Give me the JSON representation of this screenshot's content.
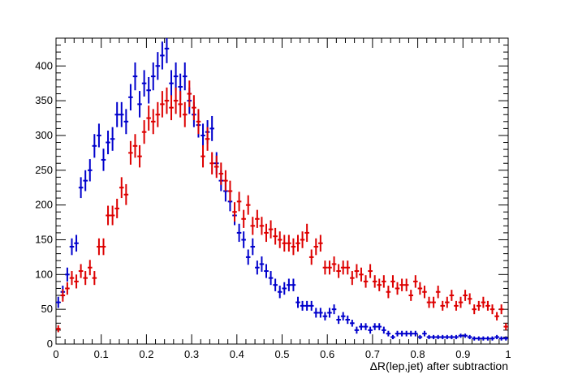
{
  "chart_data": {
    "type": "scatter",
    "title": "",
    "xlabel": "ΔR(lep,jet) after subtraction",
    "ylabel": "",
    "xlim": [
      0,
      1
    ],
    "ylim": [
      0,
      440
    ],
    "grid": false,
    "legend": "none",
    "x_ticks": [
      "0",
      "0.1",
      "0.2",
      "0.3",
      "0.4",
      "0.5",
      "0.6",
      "0.7",
      "0.8",
      "0.9",
      "1"
    ],
    "y_ticks": [
      "0",
      "50",
      "100",
      "150",
      "200",
      "250",
      "300",
      "350",
      "400"
    ],
    "bin_width": 0.01,
    "series": [
      {
        "color": "#0000cc",
        "x": [
          0.005,
          0.015,
          0.025,
          0.035,
          0.045,
          0.055,
          0.065,
          0.075,
          0.085,
          0.095,
          0.105,
          0.115,
          0.125,
          0.135,
          0.145,
          0.155,
          0.165,
          0.175,
          0.185,
          0.195,
          0.205,
          0.215,
          0.225,
          0.235,
          0.245,
          0.255,
          0.265,
          0.275,
          0.285,
          0.295,
          0.305,
          0.315,
          0.325,
          0.335,
          0.345,
          0.355,
          0.365,
          0.375,
          0.385,
          0.395,
          0.405,
          0.415,
          0.425,
          0.435,
          0.445,
          0.455,
          0.465,
          0.475,
          0.485,
          0.495,
          0.505,
          0.515,
          0.525,
          0.535,
          0.545,
          0.555,
          0.565,
          0.575,
          0.585,
          0.595,
          0.605,
          0.615,
          0.625,
          0.635,
          0.645,
          0.655,
          0.665,
          0.675,
          0.685,
          0.695,
          0.705,
          0.715,
          0.725,
          0.735,
          0.745,
          0.755,
          0.765,
          0.775,
          0.785,
          0.795,
          0.805,
          0.815,
          0.825,
          0.835,
          0.845,
          0.855,
          0.865,
          0.875,
          0.885,
          0.895,
          0.905,
          0.915,
          0.925,
          0.935,
          0.945,
          0.955,
          0.965,
          0.975,
          0.985,
          0.995
        ],
        "y": [
          60,
          75,
          100,
          140,
          145,
          225,
          235,
          250,
          285,
          300,
          265,
          290,
          295,
          330,
          330,
          320,
          355,
          385,
          345,
          375,
          365,
          385,
          400,
          415,
          425,
          375,
          385,
          370,
          385,
          350,
          330,
          315,
          300,
          305,
          310,
          260,
          235,
          220,
          205,
          185,
          160,
          150,
          125,
          140,
          110,
          115,
          105,
          95,
          85,
          75,
          80,
          85,
          85,
          60,
          55,
          55,
          55,
          45,
          45,
          40,
          45,
          50,
          35,
          40,
          35,
          30,
          20,
          25,
          25,
          20,
          25,
          25,
          20,
          15,
          10,
          15,
          15,
          15,
          15,
          15,
          10,
          15,
          10,
          10,
          10,
          10,
          10,
          10,
          10,
          12,
          12,
          10,
          8,
          8,
          8,
          8,
          8,
          10,
          8,
          8
        ],
        "err": [
          8,
          9,
          10,
          12,
          12,
          15,
          15,
          16,
          17,
          17,
          16,
          17,
          17,
          18,
          18,
          18,
          19,
          20,
          19,
          19,
          19,
          20,
          20,
          20,
          21,
          19,
          20,
          19,
          20,
          19,
          18,
          18,
          17,
          17,
          18,
          16,
          15,
          15,
          14,
          14,
          13,
          12,
          11,
          12,
          10,
          11,
          10,
          10,
          9,
          9,
          9,
          9,
          9,
          8,
          7,
          7,
          7,
          7,
          7,
          6,
          7,
          7,
          6,
          6,
          6,
          5,
          5,
          5,
          5,
          5,
          5,
          5,
          5,
          4,
          3,
          4,
          4,
          4,
          4,
          4,
          3,
          4,
          3,
          3,
          3,
          3,
          3,
          3,
          3,
          3,
          3,
          3,
          3,
          3,
          3,
          3,
          3,
          3,
          3,
          3
        ]
      },
      {
        "color": "#dd0000",
        "x": [
          0.005,
          0.015,
          0.025,
          0.035,
          0.045,
          0.055,
          0.065,
          0.075,
          0.085,
          0.095,
          0.105,
          0.115,
          0.125,
          0.135,
          0.145,
          0.155,
          0.165,
          0.175,
          0.185,
          0.195,
          0.205,
          0.215,
          0.225,
          0.235,
          0.245,
          0.255,
          0.265,
          0.275,
          0.285,
          0.295,
          0.305,
          0.315,
          0.325,
          0.335,
          0.345,
          0.355,
          0.365,
          0.375,
          0.385,
          0.395,
          0.405,
          0.415,
          0.425,
          0.435,
          0.445,
          0.455,
          0.465,
          0.475,
          0.485,
          0.495,
          0.505,
          0.515,
          0.525,
          0.535,
          0.545,
          0.555,
          0.565,
          0.575,
          0.585,
          0.595,
          0.605,
          0.615,
          0.625,
          0.635,
          0.645,
          0.655,
          0.665,
          0.675,
          0.685,
          0.695,
          0.705,
          0.715,
          0.725,
          0.735,
          0.745,
          0.755,
          0.765,
          0.775,
          0.785,
          0.795,
          0.805,
          0.815,
          0.825,
          0.835,
          0.845,
          0.855,
          0.865,
          0.875,
          0.885,
          0.895,
          0.905,
          0.915,
          0.925,
          0.935,
          0.945,
          0.955,
          0.965,
          0.975,
          0.985,
          0.995
        ],
        "y": [
          22,
          70,
          80,
          95,
          90,
          105,
          95,
          110,
          95,
          140,
          140,
          185,
          185,
          195,
          225,
          215,
          275,
          285,
          270,
          305,
          325,
          320,
          330,
          345,
          350,
          340,
          350,
          345,
          330,
          360,
          340,
          320,
          270,
          295,
          260,
          255,
          245,
          235,
          220,
          190,
          205,
          180,
          200,
          170,
          180,
          170,
          160,
          165,
          155,
          150,
          145,
          145,
          140,
          145,
          150,
          160,
          125,
          140,
          145,
          110,
          110,
          115,
          105,
          110,
          110,
          95,
          105,
          100,
          90,
          105,
          90,
          85,
          90,
          75,
          90,
          80,
          85,
          85,
          70,
          90,
          80,
          75,
          60,
          60,
          75,
          55,
          60,
          70,
          55,
          60,
          70,
          65,
          50,
          55,
          60,
          55,
          50,
          40,
          50,
          25
        ],
        "err": [
          5,
          9,
          9,
          10,
          10,
          10,
          10,
          11,
          10,
          12,
          12,
          14,
          14,
          14,
          15,
          15,
          17,
          17,
          16,
          17,
          18,
          18,
          18,
          19,
          19,
          18,
          19,
          19,
          18,
          19,
          18,
          18,
          16,
          17,
          16,
          16,
          16,
          15,
          15,
          14,
          14,
          13,
          14,
          13,
          13,
          13,
          13,
          13,
          12,
          12,
          12,
          12,
          12,
          12,
          12,
          13,
          11,
          12,
          12,
          10,
          10,
          11,
          10,
          10,
          10,
          10,
          10,
          10,
          9,
          10,
          9,
          9,
          9,
          9,
          9,
          9,
          9,
          9,
          8,
          9,
          9,
          9,
          8,
          8,
          9,
          7,
          8,
          8,
          7,
          8,
          8,
          8,
          7,
          7,
          8,
          7,
          7,
          6,
          7,
          5
        ]
      }
    ]
  }
}
